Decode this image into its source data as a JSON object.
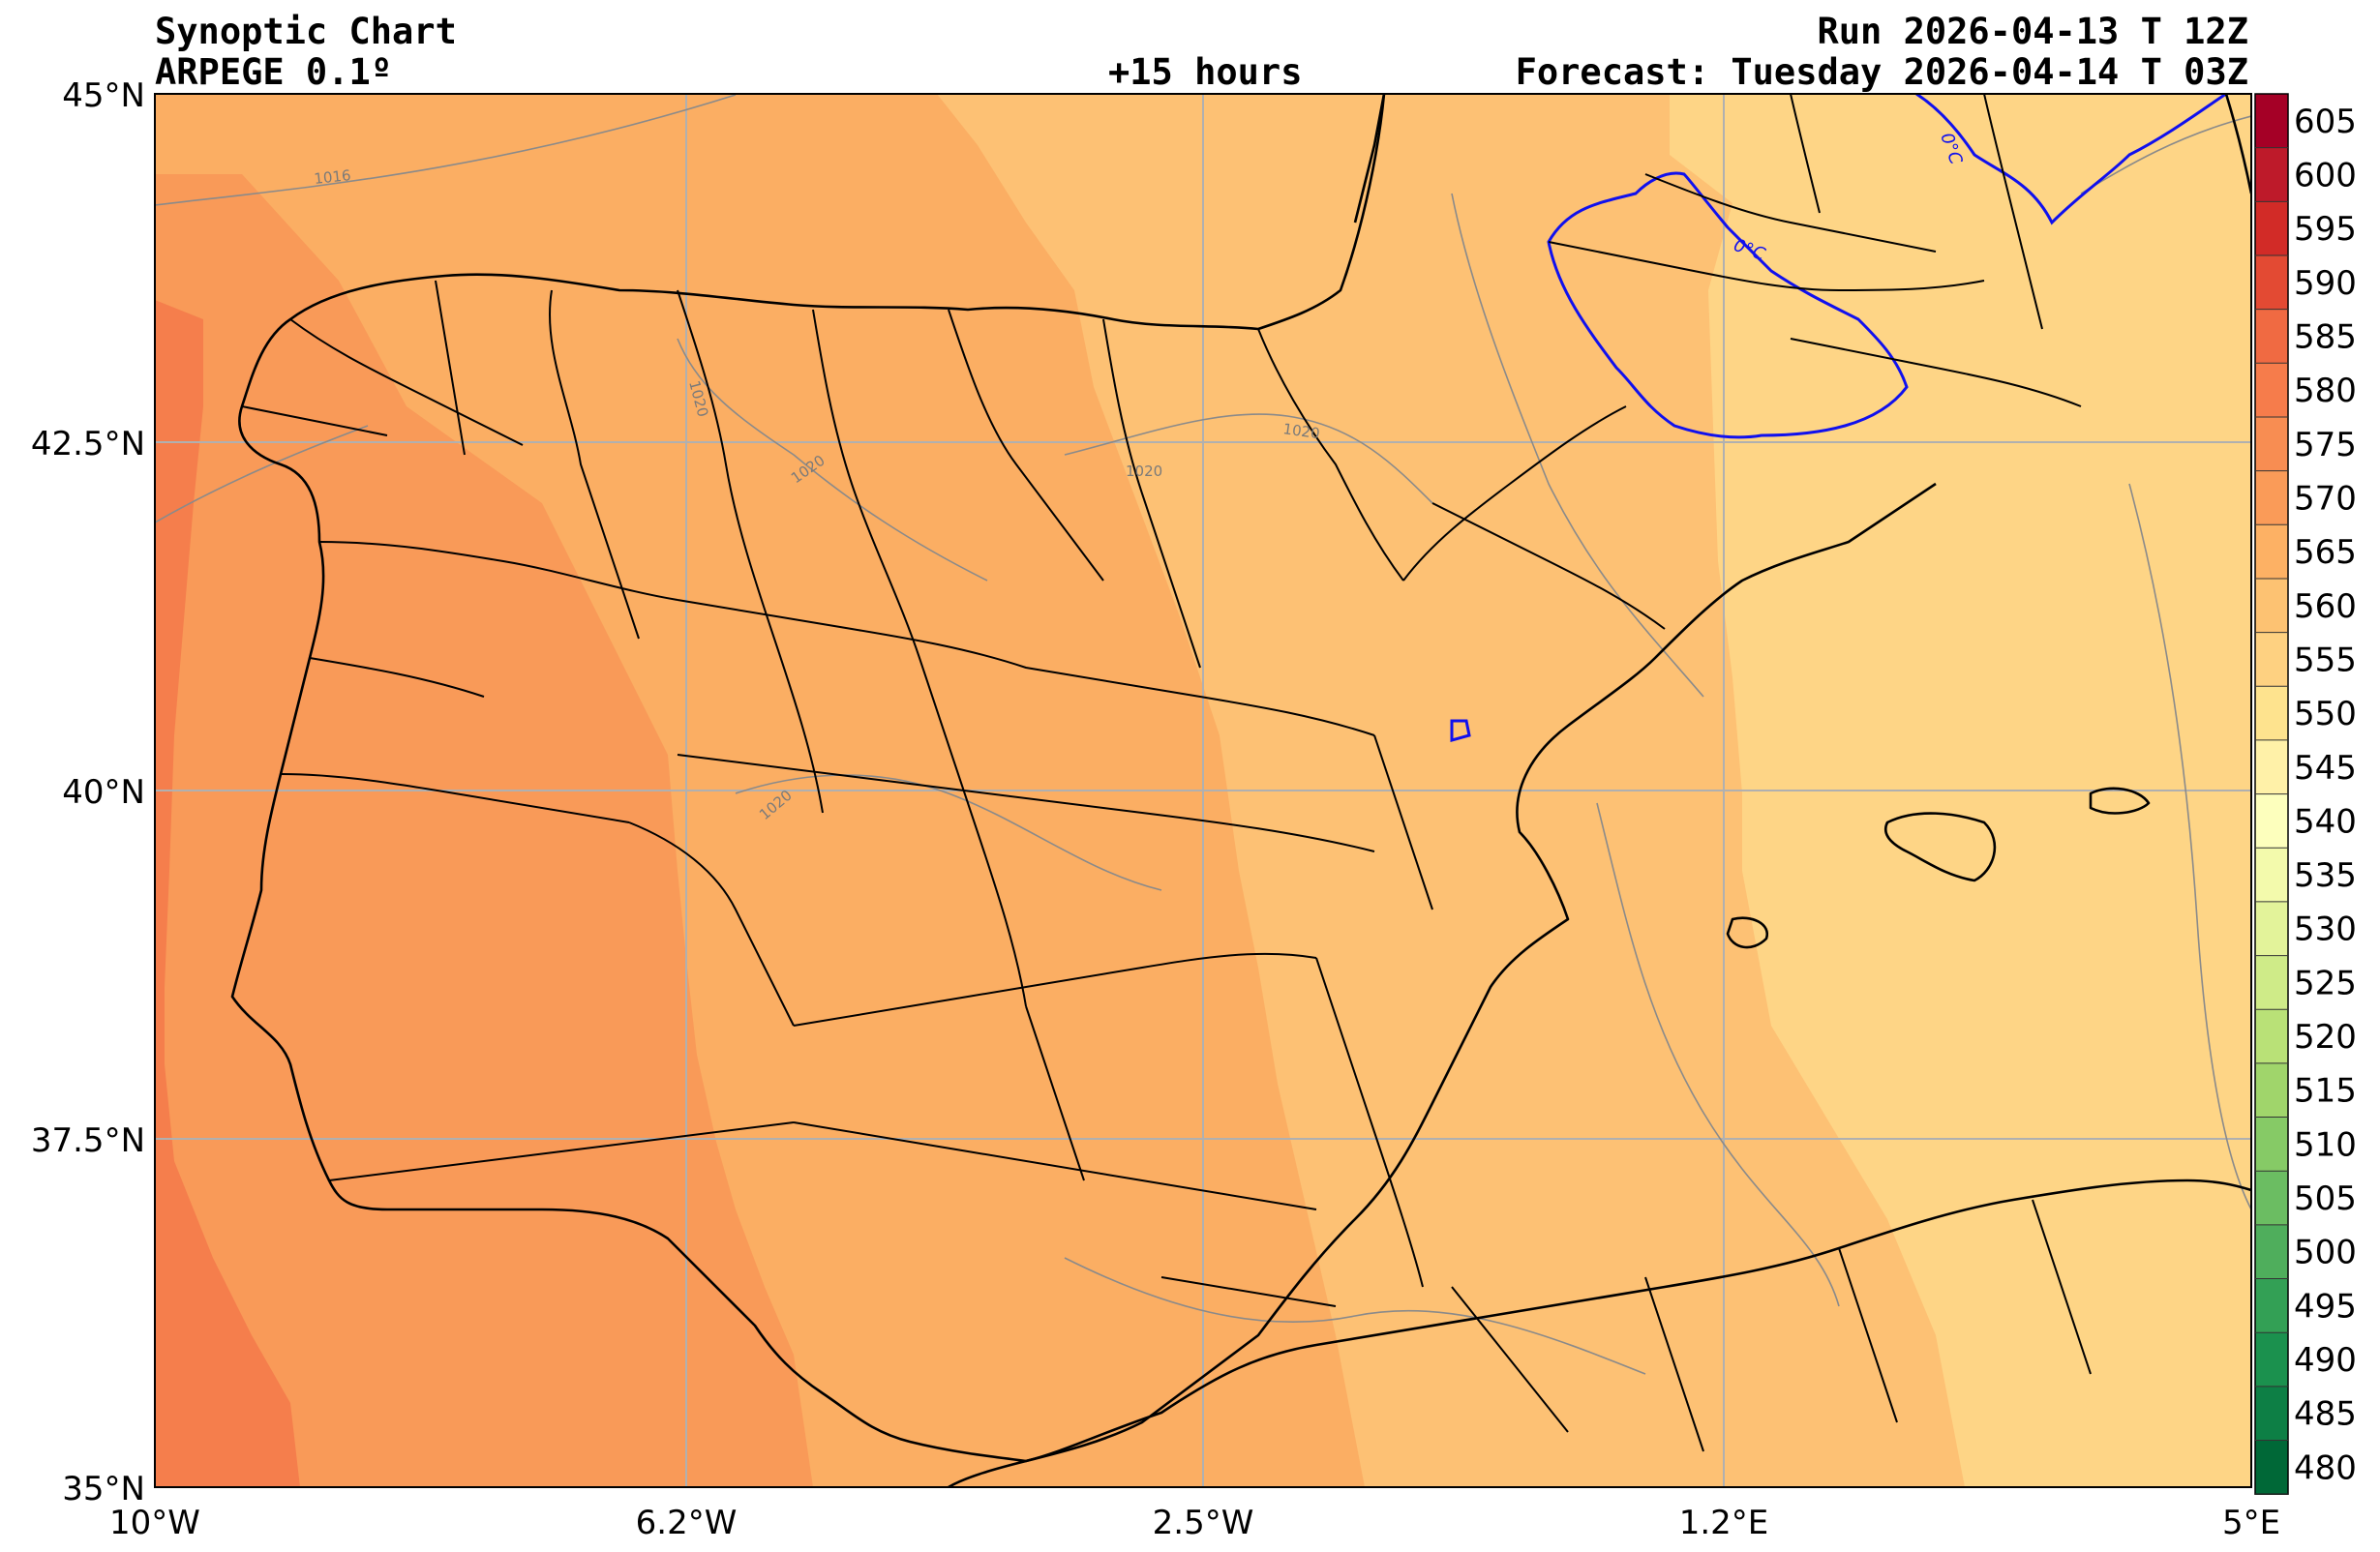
{
  "header": {
    "title": "Synoptic Chart",
    "model": "ARPEGE 0.1º",
    "lead_time": "+15 hours",
    "run": "Run 2026-04-13 T 12Z",
    "forecast": "Forecast: Tuesday 2026-04-14 T 03Z"
  },
  "map": {
    "lon_range": [
      -10,
      5
    ],
    "lat_range": [
      35,
      45
    ],
    "lat_ticks": [
      "45°N",
      "42.5°N",
      "40°N",
      "37.5°N",
      "35°N"
    ],
    "lon_ticks": [
      "10°W",
      "6.2°W",
      "2.5°W",
      "1.2°E",
      "5°E"
    ],
    "isobar_labels": [
      "1016",
      "1020",
      "1020",
      "1020",
      "1020",
      "1020"
    ],
    "freezing_labels": [
      "0°C",
      "0°C"
    ],
    "freezing_line_color": "#1010ee",
    "isobar_color": "#8a8a8a",
    "coast_color": "#000000"
  },
  "colorbar": {
    "labels": [
      "605",
      "600",
      "595",
      "590",
      "585",
      "580",
      "575",
      "570",
      "565",
      "560",
      "555",
      "550",
      "545",
      "540",
      "535",
      "530",
      "525",
      "520",
      "515",
      "510",
      "505",
      "500",
      "495",
      "490",
      "485",
      "480"
    ],
    "colors": [
      "#a50026",
      "#be1a2a",
      "#d22b27",
      "#e34a33",
      "#f06a42",
      "#f67c4b",
      "#f88d52",
      "#fa9b58",
      "#fdb164",
      "#fdc272",
      "#fed181",
      "#fee38e",
      "#fff1a8",
      "#fdffbd",
      "#f3faac",
      "#e3f39a",
      "#cfeb88",
      "#b9e177",
      "#a0d56b",
      "#86ca66",
      "#6bbd62",
      "#4fae5c",
      "#33a055",
      "#1b914e",
      "#0d7f45",
      "#006837"
    ]
  }
}
